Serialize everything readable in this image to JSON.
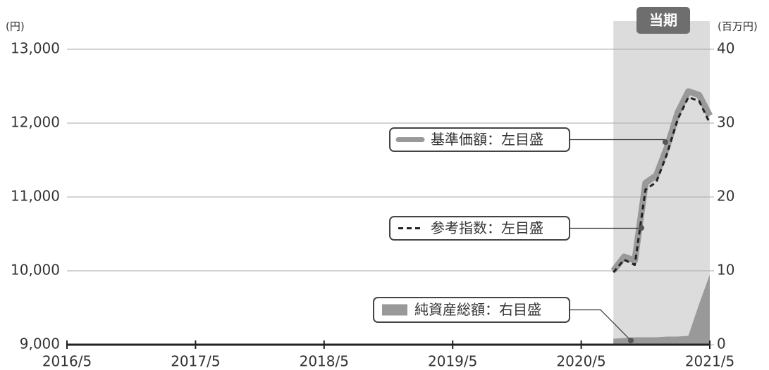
{
  "chart_data": {
    "type": "line",
    "annotation": "当期",
    "y_label": "(円)",
    "y2_label": "(百万円)",
    "categories": [
      "2016/5",
      null,
      null,
      null,
      null,
      null,
      null,
      null,
      null,
      null,
      null,
      null,
      "2017/5",
      null,
      null,
      null,
      null,
      null,
      null,
      null,
      null,
      null,
      null,
      null,
      "2018/5",
      null,
      null,
      null,
      null,
      null,
      null,
      null,
      null,
      null,
      null,
      null,
      "2019/5",
      null,
      null,
      null,
      null,
      null,
      null,
      null,
      null,
      null,
      null,
      null,
      "2020/5",
      null,
      null,
      null,
      null,
      null,
      null,
      null,
      null,
      null,
      null,
      null,
      "2021/5"
    ],
    "series": [
      {
        "name": "純資産総額：右目盛",
        "kind": "area",
        "axis": "y2",
        "color": "#999999",
        "values": [
          null,
          null,
          null,
          null,
          null,
          null,
          null,
          null,
          null,
          null,
          null,
          null,
          null,
          null,
          null,
          null,
          null,
          null,
          null,
          null,
          null,
          null,
          null,
          null,
          null,
          null,
          null,
          null,
          null,
          null,
          null,
          null,
          null,
          null,
          null,
          null,
          null,
          null,
          null,
          null,
          null,
          null,
          null,
          null,
          null,
          null,
          null,
          null,
          null,
          null,
          null,
          0.8,
          0.9,
          1.0,
          1.0,
          1.0,
          1.1,
          1.1,
          1.2,
          5.5,
          9.5
        ]
      },
      {
        "name": "基準価額：左目盛",
        "kind": "line",
        "color": "#999999",
        "values": [
          null,
          null,
          null,
          null,
          null,
          null,
          null,
          null,
          null,
          null,
          null,
          null,
          null,
          null,
          null,
          null,
          null,
          null,
          null,
          null,
          null,
          null,
          null,
          null,
          null,
          null,
          null,
          null,
          null,
          null,
          null,
          null,
          null,
          null,
          null,
          null,
          null,
          null,
          null,
          null,
          null,
          null,
          null,
          null,
          null,
          null,
          null,
          null,
          null,
          null,
          null,
          10000,
          10190,
          10140,
          11190,
          11290,
          11670,
          12140,
          12430,
          12380,
          12100
        ]
      },
      {
        "name": "参考指数：左目盛",
        "kind": "dashed",
        "color": "#222222",
        "values": [
          null,
          null,
          null,
          null,
          null,
          null,
          null,
          null,
          null,
          null,
          null,
          null,
          null,
          null,
          null,
          null,
          null,
          null,
          null,
          null,
          null,
          null,
          null,
          null,
          null,
          null,
          null,
          null,
          null,
          null,
          null,
          null,
          null,
          null,
          null,
          null,
          null,
          null,
          null,
          null,
          null,
          null,
          null,
          null,
          null,
          null,
          null,
          null,
          null,
          null,
          null,
          9980,
          10150,
          10080,
          11100,
          11200,
          11580,
          12050,
          12350,
          12300,
          12000
        ]
      }
    ],
    "ylim": [
      9000,
      13000
    ],
    "yticks": [
      {
        "value": 9000,
        "label": "9,000"
      },
      {
        "value": 10000,
        "label": "10,000"
      },
      {
        "value": 11000,
        "label": "11,000"
      },
      {
        "value": 12000,
        "label": "12,000"
      },
      {
        "value": 13000,
        "label": "13,000"
      }
    ],
    "y2lim": [
      0,
      40
    ],
    "y2ticks": [
      0,
      10,
      20,
      30,
      40
    ],
    "grid": true
  }
}
